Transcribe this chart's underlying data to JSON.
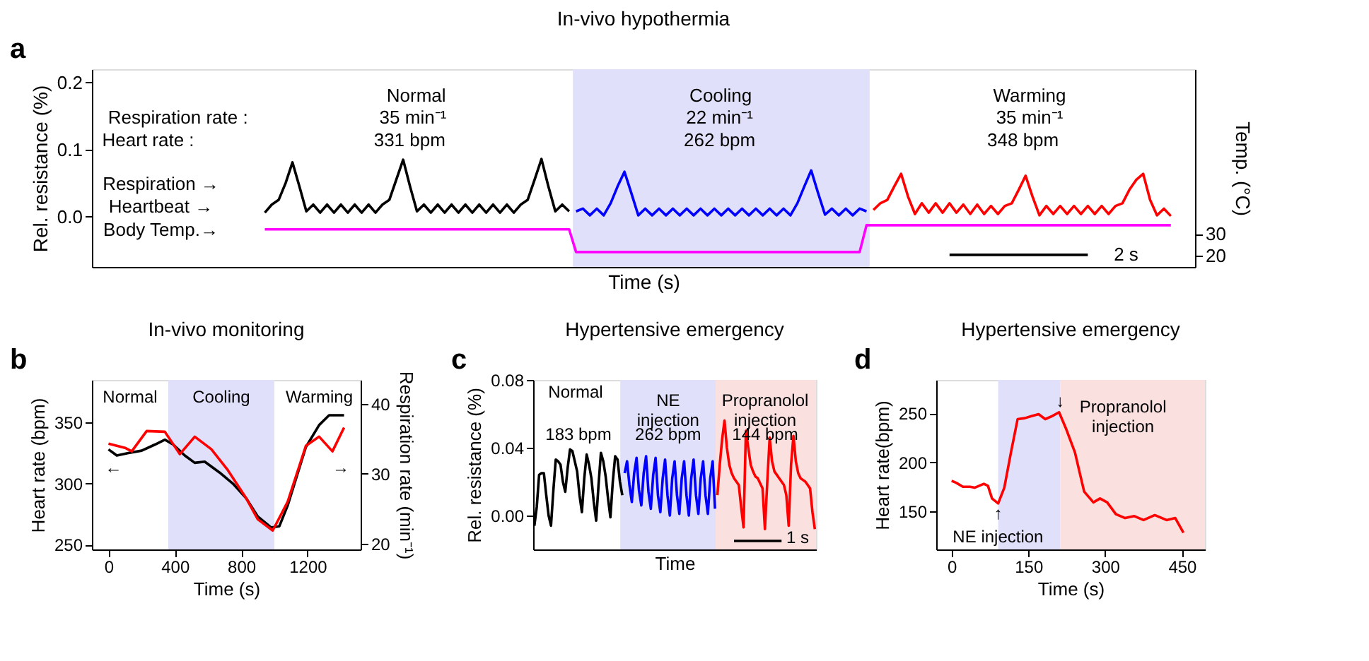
{
  "chart_data": [
    {
      "type": "line",
      "title": "In-vivo hypothermia",
      "xlabel": "Time (s)",
      "ylabel": "Rel. resistance (%)",
      "y2label": "Temp. (°C)",
      "ylim": [
        -0.075,
        0.22
      ],
      "yticks": [
        {
          "value": 0,
          "label": "0.0"
        },
        0.1,
        0.2
      ],
      "y2lim": [
        15,
        105
      ],
      "y2ticks": [
        20,
        30
      ],
      "tick_labels": "y",
      "grid": false,
      "categories": [
        null,
        null,
        null,
        null,
        null,
        null,
        null,
        null,
        null,
        null,
        null,
        null,
        null,
        null,
        null,
        null,
        null,
        null,
        null,
        null,
        null,
        null,
        null,
        null,
        null,
        null,
        null,
        null,
        null,
        null,
        null,
        null,
        null,
        null,
        null,
        null,
        null,
        null,
        null,
        null,
        null,
        null,
        null,
        null,
        null,
        null,
        null,
        null,
        null,
        null,
        null,
        null,
        null,
        null,
        null,
        null,
        null,
        null,
        null,
        null,
        null,
        null,
        null,
        null,
        null,
        null,
        null,
        null,
        null,
        null,
        null,
        null,
        null,
        null,
        null,
        null,
        null,
        null,
        null,
        null,
        null,
        null,
        null,
        null,
        null,
        null,
        null,
        null,
        null,
        null,
        null,
        null,
        null,
        null,
        null,
        null,
        null,
        null,
        null,
        null,
        null,
        null,
        null,
        null,
        null,
        null,
        null,
        null,
        null,
        null,
        null,
        null,
        null,
        null,
        null,
        null,
        null,
        null,
        null,
        null,
        null,
        null,
        null,
        null,
        null,
        null,
        null,
        null,
        null,
        null,
        null,
        null
      ],
      "series": [
        {
          "color": "#000000",
          "values": [
            0.006,
            0.018,
            0.025,
            0.05,
            0.081,
            0.045,
            0.008,
            0.018,
            0.006,
            0.018,
            0.006,
            0.018,
            0.006,
            0.018,
            0.006,
            0.018,
            0.006,
            0.018,
            0.025,
            0.055,
            0.085,
            0.045,
            0.008,
            0.018,
            0.006,
            0.018,
            0.006,
            0.018,
            0.006,
            0.018,
            0.006,
            0.018,
            0.006,
            0.018,
            0.006,
            0.018,
            0.006,
            0.018,
            0.025,
            0.055,
            0.086,
            0.045,
            0.008,
            0.018,
            0.008,
            null,
            null,
            null,
            null,
            null,
            null,
            null,
            null,
            null,
            null,
            null,
            null,
            null,
            null,
            null,
            null,
            null,
            null,
            null,
            null,
            null,
            null,
            null,
            null,
            null,
            null,
            null,
            null,
            null,
            null,
            null,
            null,
            null,
            null,
            null,
            null,
            null,
            null,
            null,
            null,
            null,
            null,
            null,
            null,
            null,
            null,
            null,
            null,
            null,
            null,
            null,
            null,
            null,
            null,
            null,
            null,
            null,
            null,
            null,
            null,
            null,
            null,
            null,
            null,
            null,
            null,
            null,
            null,
            null,
            null,
            null,
            null,
            null,
            null,
            null,
            null,
            null,
            null,
            null,
            null,
            null,
            null,
            null,
            null,
            null,
            null,
            null
          ]
        },
        {
          "color": "#0000ff",
          "values": [
            null,
            null,
            null,
            null,
            null,
            null,
            null,
            null,
            null,
            null,
            null,
            null,
            null,
            null,
            null,
            null,
            null,
            null,
            null,
            null,
            null,
            null,
            null,
            null,
            null,
            null,
            null,
            null,
            null,
            null,
            null,
            null,
            null,
            null,
            null,
            null,
            null,
            null,
            null,
            null,
            null,
            null,
            null,
            null,
            null,
            0.008,
            0.012,
            0.002,
            0.012,
            0.002,
            0.02,
            0.045,
            0.067,
            0.035,
            0.002,
            0.012,
            0.002,
            0.012,
            0.002,
            0.012,
            0.002,
            0.012,
            0.002,
            0.012,
            0.002,
            0.012,
            0.002,
            0.012,
            0.002,
            0.012,
            0.002,
            0.012,
            0.002,
            0.012,
            0.002,
            0.012,
            0.002,
            0.02,
            0.045,
            0.069,
            0.035,
            0.003,
            0.012,
            0.002,
            0.012,
            0.002,
            0.012,
            0.008,
            null,
            null,
            null,
            null,
            null,
            null,
            null,
            null,
            null,
            null,
            null,
            null,
            null,
            null,
            null,
            null,
            null,
            null,
            null,
            null,
            null,
            null,
            null,
            null,
            null,
            null,
            null,
            null,
            null,
            null,
            null,
            null,
            null,
            null,
            null,
            null,
            null,
            null,
            null,
            null,
            null,
            null,
            null,
            null
          ]
        },
        {
          "color": "#ff0000",
          "values": [
            null,
            null,
            null,
            null,
            null,
            null,
            null,
            null,
            null,
            null,
            null,
            null,
            null,
            null,
            null,
            null,
            null,
            null,
            null,
            null,
            null,
            null,
            null,
            null,
            null,
            null,
            null,
            null,
            null,
            null,
            null,
            null,
            null,
            null,
            null,
            null,
            null,
            null,
            null,
            null,
            null,
            null,
            null,
            null,
            null,
            null,
            null,
            null,
            null,
            null,
            null,
            null,
            null,
            null,
            null,
            null,
            null,
            null,
            null,
            null,
            null,
            null,
            null,
            null,
            null,
            null,
            null,
            null,
            null,
            null,
            null,
            null,
            null,
            null,
            null,
            null,
            null,
            null,
            null,
            null,
            null,
            null,
            null,
            null,
            null,
            null,
            null,
            null,
            0.01,
            0.02,
            0.025,
            0.045,
            0.064,
            0.03,
            0.004,
            0.02,
            0.006,
            0.02,
            0.006,
            0.02,
            0.006,
            0.018,
            0.004,
            0.018,
            0.004,
            0.016,
            0.004,
            0.016,
            0.02,
            0.04,
            0.061,
            0.03,
            0.002,
            0.016,
            0.004,
            0.016,
            0.004,
            0.016,
            0.004,
            0.016,
            0.004,
            0.016,
            0.004,
            0.016,
            0.02,
            0.04,
            0.055,
            0.064,
            0.025,
            0.002,
            0.012,
            0.001
          ]
        },
        {
          "color": "#ff00ff",
          "axis": "y2",
          "values": [
            32.1,
            32.1,
            32.1,
            32.1,
            32.1,
            32.1,
            32.1,
            32.1,
            32.1,
            32.1,
            32.1,
            32.1,
            32.1,
            32.1,
            32.1,
            32.1,
            32.1,
            32.1,
            32.1,
            32.1,
            32.1,
            32.1,
            32.1,
            32.1,
            32.1,
            32.1,
            32.1,
            32.1,
            32.1,
            32.1,
            32.1,
            32.1,
            32.1,
            32.1,
            32.1,
            32.1,
            32.1,
            32.1,
            32.1,
            32.1,
            32.1,
            32.1,
            32.1,
            32.1,
            32.1,
            21.8,
            21.8,
            21.8,
            21.8,
            21.8,
            21.8,
            21.8,
            21.8,
            21.8,
            21.8,
            21.8,
            21.8,
            21.8,
            21.8,
            21.8,
            21.8,
            21.8,
            21.8,
            21.8,
            21.8,
            21.8,
            21.8,
            21.8,
            21.8,
            21.8,
            21.8,
            21.8,
            21.8,
            21.8,
            21.8,
            21.8,
            21.8,
            21.8,
            21.8,
            21.8,
            21.8,
            21.8,
            21.8,
            21.8,
            21.8,
            21.8,
            21.8,
            34,
            34,
            34,
            34,
            34,
            34,
            34,
            34,
            34,
            34,
            34,
            34,
            34,
            34,
            34,
            34,
            34,
            34,
            34,
            34,
            34,
            34,
            34,
            34,
            34,
            34,
            34,
            34,
            34,
            34,
            34,
            34,
            34,
            34,
            34,
            34,
            34,
            34,
            34,
            34,
            34,
            34,
            34,
            34,
            34
          ]
        },
        {
          "color": "#000000",
          "values": [
            null,
            null,
            null,
            null,
            null,
            null,
            null,
            null,
            null,
            null,
            null,
            null,
            null,
            null,
            null,
            null,
            null,
            null,
            null,
            null,
            null,
            null,
            null,
            null,
            null,
            null,
            null,
            null,
            null,
            null,
            null,
            null,
            null,
            null,
            null,
            null,
            null,
            null,
            null,
            null,
            null,
            null,
            null,
            null,
            null,
            null,
            null,
            null,
            null,
            null,
            null,
            null,
            null,
            null,
            null,
            null,
            null,
            null,
            null,
            null,
            null,
            null,
            null,
            null,
            null,
            null,
            null,
            null,
            null,
            null,
            null,
            null,
            null,
            null,
            null,
            null,
            null,
            null,
            null,
            null,
            null,
            null,
            null,
            null,
            null,
            null,
            null,
            null,
            null,
            null,
            null,
            null,
            null,
            null,
            null,
            null,
            null,
            null,
            null,
            -0.057,
            -0.057,
            -0.057,
            -0.057,
            -0.057,
            -0.057,
            -0.057,
            -0.057,
            -0.057,
            -0.057,
            -0.057,
            -0.057,
            -0.057,
            -0.057,
            -0.057,
            -0.057,
            -0.057,
            -0.057,
            -0.057,
            -0.057,
            -0.057,
            null,
            null,
            null,
            null,
            null,
            null,
            null,
            null,
            null,
            null,
            null,
            null
          ]
        }
      ],
      "annotations": [
        "a",
        "Normal",
        "Respiration rate :",
        "35 min⁻¹",
        "Heart rate :",
        "331 bpm",
        "Cooling",
        "22 min⁻¹",
        "262 bpm",
        "Warming",
        "35 min⁻¹",
        "348 bpm",
        "Respiration →",
        "Heartbeat →",
        "Body Temp.→",
        "2 s"
      ]
    },
    {
      "type": "line",
      "title": "In-vivo monitoring",
      "xlabel": "Time (s)",
      "ylabel": "Heart rate (bpm)",
      "y2label": "Respiration rate (min⁻¹)",
      "xlim": [
        -100,
        1520
      ],
      "xticks": [
        0,
        400,
        800,
        1200
      ],
      "ylim": [
        246,
        385
      ],
      "yticks": [
        250,
        300,
        350
      ],
      "y2lim": [
        19.2,
        43.4
      ],
      "y2ticks": [
        20,
        30,
        40
      ],
      "grid": false,
      "bands": [
        {
          "axis": "x",
          "from": 360,
          "to": 1000,
          "label": "Cooling",
          "color": "#e0e0fa"
        }
      ],
      "series": [
        {
          "color": "#000000",
          "x": [
            0,
            50,
            120,
            200,
            280,
            340,
            390,
            460,
            520,
            580,
            670,
            750,
            830,
            900,
            980,
            1030,
            1080,
            1190,
            1270,
            1330,
            1420
          ],
          "values": [
            328,
            323,
            325,
            327,
            332,
            336,
            332,
            323,
            317,
            318,
            309,
            300,
            288,
            273,
            264,
            265,
            282,
            330,
            348,
            356,
            356
          ]
        },
        {
          "color": "#ff0000",
          "axis": "y2",
          "x": [
            0,
            100,
            140,
            230,
            340,
            430,
            520,
            620,
            720,
            830,
            900,
            990,
            1080,
            1190,
            1270,
            1350,
            1420
          ],
          "values": [
            34.3,
            33.7,
            33.2,
            36.1,
            36.0,
            32.8,
            35.3,
            33.5,
            30.5,
            26.5,
            23.5,
            21.9,
            26.0,
            34.0,
            35.3,
            33.2,
            36.6
          ]
        }
      ],
      "annotations": [
        "b",
        "Normal",
        "Warming",
        "←",
        "→"
      ]
    },
    {
      "type": "line",
      "title": "Hypertensive emergency",
      "xlabel": "Time",
      "ylabel": "Rel. resistance (%)",
      "ylim": [
        -0.02,
        0.08
      ],
      "yticks": [
        {
          "value": 0,
          "label": "0.00"
        },
        0.04,
        0.08
      ],
      "tick_labels": "y",
      "grid": false,
      "categories": [
        null,
        null,
        null,
        null,
        null,
        null,
        null,
        null,
        null,
        null,
        null,
        null,
        null,
        null,
        null,
        null,
        null,
        null,
        null,
        null,
        null,
        null,
        null,
        null,
        null,
        null,
        null,
        null,
        null,
        null,
        null,
        null,
        null,
        null,
        null,
        null,
        null,
        null,
        null,
        null,
        null,
        null,
        null,
        null,
        null,
        null,
        null,
        null,
        null,
        null,
        null,
        null,
        null,
        null,
        null,
        null,
        null,
        null,
        null,
        null,
        null,
        null,
        null,
        null,
        null,
        null,
        null,
        null,
        null,
        null,
        null,
        null,
        null,
        null,
        null,
        null,
        null,
        null,
        null,
        null,
        null,
        null,
        null,
        null,
        null,
        null,
        null,
        null,
        null,
        null,
        null,
        null,
        null,
        null,
        null,
        null,
        null,
        null,
        null,
        null,
        null,
        null,
        null,
        null,
        null,
        null,
        null,
        null,
        null,
        null,
        null,
        null,
        null,
        null,
        null,
        null,
        null,
        null,
        null
      ],
      "series": [
        {
          "color": "#000000",
          "values": [
            -0.006,
            0.005,
            0.024,
            0.025,
            0.025,
            0.012,
            0.0,
            -0.006,
            0.015,
            0.033,
            0.032,
            0.03,
            0.02,
            0.014,
            0.028,
            0.039,
            0.038,
            0.032,
            0.026,
            0.012,
            0.002,
            0.022,
            0.036,
            0.03,
            0.022,
            0.008,
            -0.003,
            0.018,
            0.037,
            0.032,
            0.023,
            0.01,
            -0.001,
            0.02,
            0.035,
            0.033,
            0.02,
            0.012,
            null,
            null,
            null,
            null,
            null,
            null,
            null,
            null,
            null,
            null,
            null,
            null,
            null,
            null,
            null,
            null,
            null,
            null,
            null,
            null,
            null,
            null,
            null,
            null,
            null,
            null,
            null,
            null,
            null,
            null,
            null,
            null,
            null,
            null,
            null,
            null,
            null,
            null,
            null,
            null,
            null,
            null,
            null,
            null,
            null,
            null,
            null,
            null,
            null,
            null,
            null,
            null,
            null,
            null,
            null,
            null,
            null,
            null,
            null,
            null,
            null,
            null,
            null,
            null,
            null,
            null,
            null,
            null,
            null,
            null,
            null,
            null,
            null,
            null,
            null,
            null,
            null,
            null,
            null,
            null,
            null
          ]
        },
        {
          "color": "#0000ff",
          "values": [
            null,
            null,
            null,
            null,
            null,
            null,
            null,
            null,
            null,
            null,
            null,
            null,
            null,
            null,
            null,
            null,
            null,
            null,
            null,
            null,
            null,
            null,
            null,
            null,
            null,
            null,
            null,
            null,
            null,
            null,
            null,
            null,
            null,
            null,
            null,
            null,
            null,
            null,
            0.025,
            0.032,
            0.018,
            0.008,
            0.025,
            0.034,
            0.015,
            0.006,
            0.025,
            0.035,
            0.014,
            0.004,
            0.024,
            0.034,
            0.012,
            0.002,
            0.022,
            0.033,
            0.012,
            0.0,
            0.022,
            0.032,
            0.012,
            0.001,
            0.022,
            0.032,
            0.012,
            0.0,
            0.022,
            0.033,
            0.012,
            0.001,
            0.022,
            0.032,
            0.012,
            0.001,
            0.022,
            0.032,
            0.004,
            null,
            null,
            null,
            null,
            null,
            null,
            null,
            null,
            null,
            null,
            null,
            null,
            null,
            null,
            null,
            null,
            null,
            null,
            null,
            null,
            null,
            null,
            null,
            null,
            null,
            null,
            null,
            null,
            null,
            null,
            null,
            null,
            null,
            null,
            null,
            null,
            null,
            null,
            null,
            null,
            null,
            null
          ]
        },
        {
          "color": "#ff0000",
          "values": [
            null,
            null,
            null,
            null,
            null,
            null,
            null,
            null,
            null,
            null,
            null,
            null,
            null,
            null,
            null,
            null,
            null,
            null,
            null,
            null,
            null,
            null,
            null,
            null,
            null,
            null,
            null,
            null,
            null,
            null,
            null,
            null,
            null,
            null,
            null,
            null,
            null,
            null,
            null,
            null,
            null,
            null,
            null,
            null,
            null,
            null,
            null,
            null,
            null,
            null,
            null,
            null,
            null,
            null,
            null,
            null,
            null,
            null,
            null,
            null,
            null,
            null,
            null,
            null,
            null,
            null,
            null,
            null,
            null,
            null,
            null,
            null,
            null,
            null,
            null,
            null,
            null,
            0.012,
            0.03,
            0.045,
            0.056,
            0.04,
            0.03,
            0.025,
            0.022,
            0.02,
            0.018,
            0.005,
            -0.007,
            0.05,
            0.04,
            0.03,
            0.026,
            0.023,
            0.022,
            0.019,
            0.016,
            -0.008,
            0.02,
            0.046,
            0.032,
            0.026,
            0.024,
            0.022,
            0.02,
            0.018,
            0.012,
            -0.006,
            0.03,
            0.047,
            0.032,
            0.025,
            0.022,
            0.021,
            0.02,
            0.018,
            0.016,
            0.002,
            -0.008
          ]
        },
        {
          "color": "#000000",
          "values": [
            null,
            null,
            null,
            null,
            null,
            null,
            null,
            null,
            null,
            null,
            null,
            null,
            null,
            null,
            null,
            null,
            null,
            null,
            null,
            null,
            null,
            null,
            null,
            null,
            null,
            null,
            null,
            null,
            null,
            null,
            null,
            null,
            null,
            null,
            null,
            null,
            null,
            null,
            null,
            null,
            null,
            null,
            null,
            null,
            null,
            null,
            null,
            null,
            null,
            null,
            null,
            null,
            null,
            null,
            null,
            null,
            null,
            null,
            null,
            null,
            null,
            null,
            null,
            null,
            null,
            null,
            null,
            null,
            null,
            null,
            null,
            null,
            null,
            null,
            null,
            null,
            null,
            null,
            null,
            null,
            null,
            null,
            null,
            null,
            -0.015,
            -0.015,
            -0.015,
            -0.015,
            -0.015,
            -0.015,
            -0.015,
            -0.015,
            -0.015,
            -0.015,
            -0.015,
            -0.015,
            -0.015,
            -0.015,
            -0.015,
            -0.015,
            -0.015,
            -0.015,
            -0.015,
            -0.015,
            -0.015,
            null,
            null,
            null,
            null,
            null,
            null,
            null,
            null,
            null,
            null,
            null,
            null,
            null,
            null
          ]
        }
      ],
      "annotations": [
        "c",
        "Normal",
        "183 bpm",
        "NE\ninjection",
        "262 bpm",
        "Propranolol\ninjection",
        "144 bpm",
        "1 s"
      ]
    },
    {
      "type": "line",
      "title": "Hypertensive emergency",
      "xlabel": "Time (s)",
      "ylabel": "Heart rate(bpm)",
      "xlim": [
        -30,
        495
      ],
      "xticks": [
        0,
        150,
        300,
        450
      ],
      "ylim": [
        111,
        284
      ],
      "yticks": [
        150,
        200,
        250
      ],
      "grid": false,
      "bands": [
        {
          "axis": "x",
          "from": 91,
          "to": 212,
          "color": "#e0e0fa"
        },
        {
          "axis": "x",
          "from": 212,
          "to": 495,
          "color": "#fbe0e0"
        }
      ],
      "series": [
        {
          "color": "#ff0000",
          "x": [
            0,
            9,
            22,
            36,
            45,
            63,
            71,
            79,
            91,
            103,
            116,
            129,
            143,
            156,
            170,
            183,
            196,
            210,
            223,
            241,
            259,
            277,
            290,
            304,
            321,
            339,
            357,
            375,
            397,
            420,
            437,
            453
          ],
          "values": [
            181,
            179,
            175,
            175,
            174,
            178,
            176,
            163,
            158,
            174,
            210,
            244,
            245,
            247,
            249,
            244,
            247,
            251,
            235,
            210,
            170,
            159,
            163,
            159,
            147,
            143,
            145,
            141,
            146,
            141,
            143,
            128
          ]
        }
      ],
      "annotations": [
        "d",
        "↑",
        "NE injection",
        "↓",
        "Propranolol\ninjection"
      ]
    }
  ]
}
